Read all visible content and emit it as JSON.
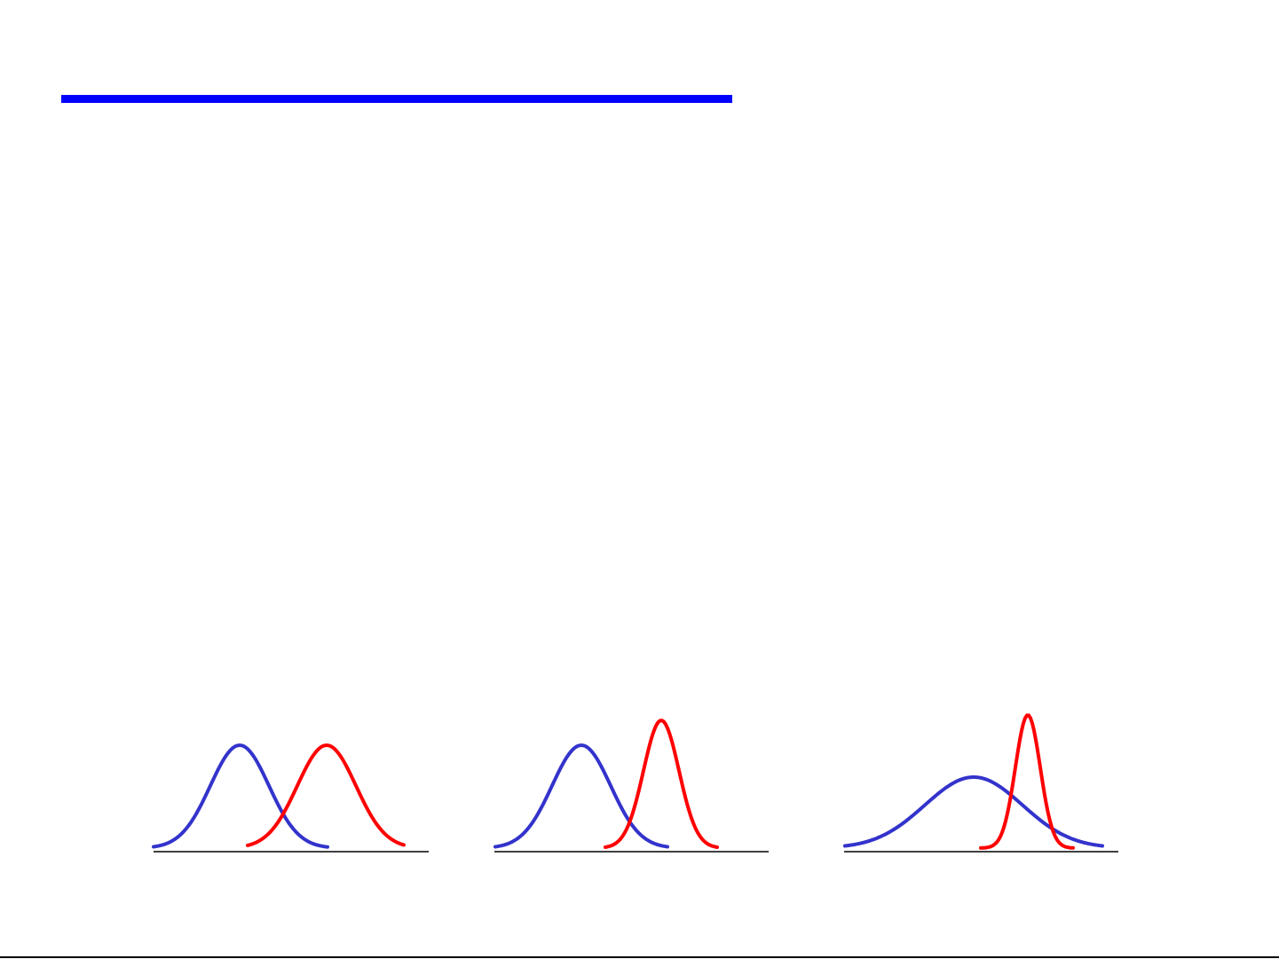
{
  "colors": {
    "title_bar": "#0000ff",
    "curve_a": "#3333cc",
    "curve_b": "#ff0000",
    "axis": "#000000"
  }
}
